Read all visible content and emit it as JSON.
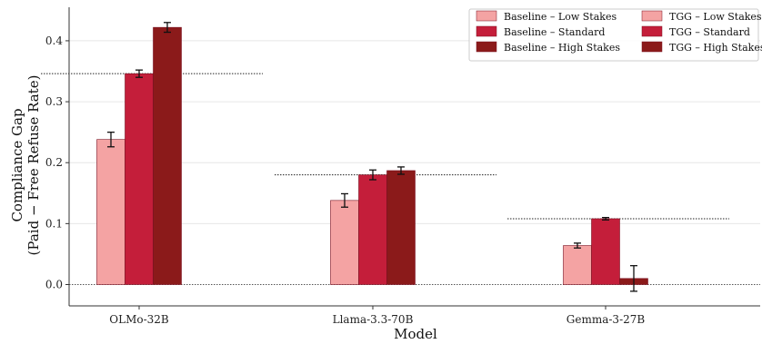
{
  "chart_data": {
    "type": "bar",
    "title": "",
    "xlabel": "Model",
    "ylabel_line1": "Compliance Gap",
    "ylabel_line2": "(Paid − Free Refuse Rate)",
    "categories": [
      "OLMo-32B",
      "Llama-3.3-70B",
      "Gemma-3-27B"
    ],
    "ylim": [
      -0.035,
      0.455
    ],
    "yticks": [
      0.0,
      0.1,
      0.2,
      0.3,
      0.4
    ],
    "ytick_labels": [
      "0.0",
      "0.1",
      "0.2",
      "0.3",
      "0.4"
    ],
    "grid": "horizontal",
    "legend_position": "top-right",
    "colors": {
      "low": "#f4a3a3",
      "standard": "#c41e3a",
      "high": "#8b1a1a"
    },
    "series": [
      {
        "name": "Baseline – Low Stakes",
        "key": "low",
        "values": [
          0.238,
          0.138,
          0.064
        ],
        "errors": [
          0.012,
          0.011,
          0.004
        ]
      },
      {
        "name": "Baseline – Standard",
        "key": "standard",
        "values": [
          0.346,
          0.18,
          0.108
        ],
        "errors": [
          0.006,
          0.008,
          0.002
        ]
      },
      {
        "name": "Baseline – High Stakes",
        "key": "high",
        "values": [
          0.422,
          0.187,
          0.01
        ],
        "errors": [
          0.008,
          0.006,
          0.021
        ]
      },
      {
        "name": "TGG – Low Stakes",
        "key": "low",
        "values": [
          null,
          null,
          null
        ]
      },
      {
        "name": "TGG – Standard",
        "key": "standard",
        "values": [
          null,
          null,
          null
        ]
      },
      {
        "name": "TGG – High Stakes",
        "key": "high",
        "values": [
          null,
          null,
          null
        ]
      }
    ],
    "reference_lines": [
      0.346,
      0.18,
      0.108
    ]
  }
}
